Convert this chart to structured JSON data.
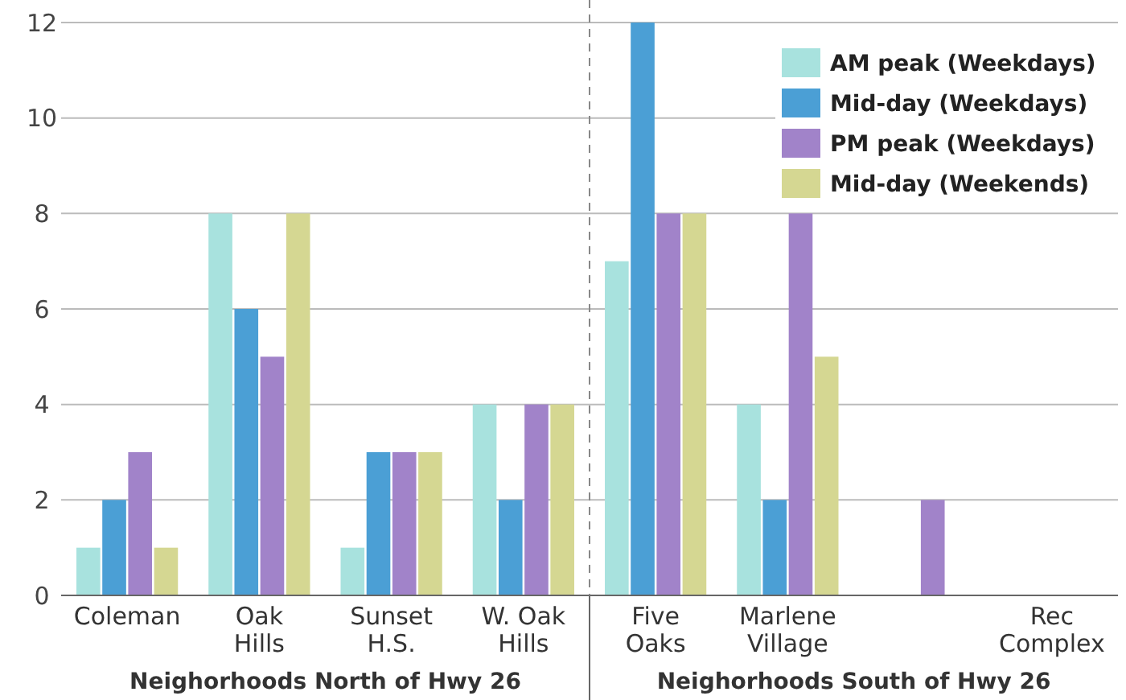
{
  "chart_data": {
    "type": "bar",
    "categories": [
      "Coleman",
      "Oak Hills",
      "Sunset H.S.",
      "W. Oak Hills",
      "Five Oaks",
      "Marlene Village",
      null,
      "Rec Complex"
    ],
    "series": [
      {
        "name": "AM peak (Weekdays)",
        "color": "#a8e2de",
        "values": [
          1,
          8,
          1,
          4,
          7,
          4,
          0,
          0
        ]
      },
      {
        "name": "Mid-day (Weekdays)",
        "color": "#4b9fd5",
        "values": [
          2,
          6,
          3,
          2,
          12,
          2,
          0,
          0
        ]
      },
      {
        "name": "PM peak (Weekdays)",
        "color": "#a183c9",
        "values": [
          3,
          5,
          3,
          4,
          8,
          8,
          2,
          0
        ]
      },
      {
        "name": "Mid-day (Weekends)",
        "color": "#d5d792",
        "values": [
          1,
          8,
          3,
          4,
          8,
          5,
          0,
          0
        ]
      }
    ],
    "ylim": [
      0,
      12
    ],
    "yticks": [
      0,
      2,
      4,
      6,
      8,
      10,
      12
    ],
    "grid": "y",
    "legend": "top right",
    "annotations": [
      "Neighorhoods North of Hwy 26",
      "Neighorhoods South of Hwy 26"
    ]
  }
}
